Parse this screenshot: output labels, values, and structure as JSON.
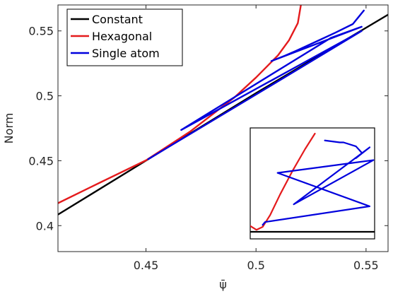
{
  "chart_data": {
    "type": "line",
    "title": "",
    "xlabel": "ψ̄",
    "ylabel": "Norm",
    "xlim": [
      0.41,
      0.56
    ],
    "ylim": [
      0.38,
      0.57
    ],
    "x_ticks": [
      0.45,
      0.5,
      0.55
    ],
    "x_tick_labels": [
      "0.45",
      "0.5",
      "0.55"
    ],
    "y_ticks": [
      0.4,
      0.45,
      0.5,
      0.55
    ],
    "y_tick_labels": [
      "0.4",
      "0.45",
      "0.5",
      "0.55"
    ],
    "grid": false,
    "legend": {
      "placement": "top-left"
    },
    "series": [
      {
        "name": "Constant",
        "color": "#000000",
        "x": [
          0.41,
          0.45,
          0.5,
          0.56
        ],
        "y": [
          0.4085,
          0.4501,
          0.5021,
          0.5625
        ]
      },
      {
        "name": "Hexagonal",
        "color": "#e41a1c",
        "x": [
          0.41,
          0.43,
          0.45,
          0.47,
          0.49,
          0.5,
          0.51,
          0.515,
          0.519,
          0.5205
        ],
        "y": [
          0.4173,
          0.4339,
          0.4503,
          0.4724,
          0.4985,
          0.5141,
          0.5312,
          0.5428,
          0.556,
          0.571
        ]
      },
      {
        "name": "Single atom",
        "color": "#0000dd",
        "x": [
          0.451,
          0.5,
          0.548,
          0.466,
          0.534,
          0.548,
          0.507,
          0.513,
          0.518,
          0.528,
          0.536,
          0.544,
          0.549
        ],
        "y": [
          0.4512,
          0.501,
          0.55,
          0.4737,
          0.5446,
          0.5532,
          0.5268,
          0.5308,
          0.5345,
          0.5423,
          0.5486,
          0.5553,
          0.5657
        ]
      }
    ],
    "inset": {
      "series": [
        {
          "name": "Constant",
          "color": "#000000",
          "x": [
            0.0,
            1.0
          ],
          "y": [
            0.0,
            0.0
          ]
        },
        {
          "name": "Hexagonal",
          "color": "#e41a1c",
          "x": [
            0.0,
            0.05,
            0.1,
            0.16,
            0.24,
            0.34,
            0.44,
            0.52
          ],
          "y": [
            0.06,
            0.02,
            0.05,
            0.17,
            0.38,
            0.62,
            0.84,
            1.0
          ]
        },
        {
          "name": "Single atom",
          "color": "#0000dd",
          "x": [
            0.1,
            0.12,
            0.96,
            0.22,
            0.99,
            0.35,
            0.96,
            0.85,
            0.9,
            0.85,
            0.75,
            0.72,
            0.6
          ],
          "y": [
            0.07,
            0.1,
            0.26,
            0.6,
            0.73,
            0.28,
            0.86,
            0.75,
            0.8,
            0.87,
            0.91,
            0.91,
            0.93
          ]
        }
      ]
    }
  }
}
